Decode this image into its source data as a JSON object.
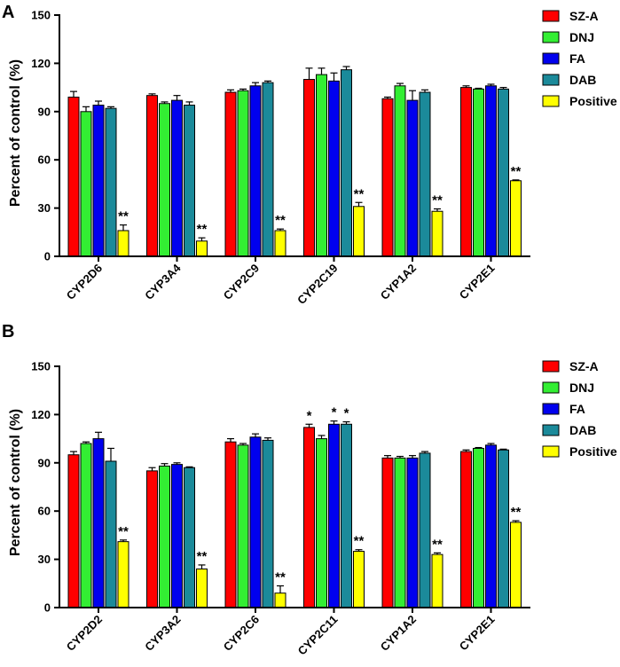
{
  "colors": {
    "SZ-A": "#ff0000",
    "DNJ": "#33ee33",
    "FA": "#0000ee",
    "DAB": "#1b8a9a",
    "Positive": "#ffff00"
  },
  "chart_data": [
    {
      "type": "bar",
      "panel": "A",
      "ylabel": "Percent of control (%)",
      "ylim": [
        0,
        150
      ],
      "yticks": [
        0,
        30,
        60,
        90,
        120,
        150
      ],
      "categories": [
        "CYP2D6",
        "CYP3A4",
        "CYP2C9",
        "CYP2C19",
        "CYP1A2",
        "CYP2E1"
      ],
      "legend": [
        "SZ-A",
        "DNJ",
        "FA",
        "DAB",
        "Positive"
      ],
      "series": [
        {
          "name": "SZ-A",
          "values": [
            99,
            100,
            102,
            110,
            98,
            105
          ],
          "errors": [
            3.5,
            1,
            1.5,
            7,
            1,
            1
          ]
        },
        {
          "name": "DNJ",
          "values": [
            90,
            95,
            103,
            113,
            106,
            104
          ],
          "errors": [
            3,
            1,
            1,
            4,
            1.5,
            0.5
          ]
        },
        {
          "name": "FA",
          "values": [
            94,
            97,
            106,
            109,
            97,
            106
          ],
          "errors": [
            2.5,
            3,
            2,
            5,
            6,
            1
          ]
        },
        {
          "name": "DAB",
          "values": [
            92,
            94,
            108,
            116,
            102,
            104
          ],
          "errors": [
            1,
            2,
            1,
            2,
            1.5,
            1
          ]
        },
        {
          "name": "Positive",
          "values": [
            16,
            9.5,
            16,
            31,
            28,
            47
          ],
          "errors": [
            3.5,
            2,
            1,
            2.5,
            1.5,
            0.5
          ]
        }
      ],
      "significance": [
        {
          "category": "CYP2D6",
          "series": "Positive",
          "label": "**"
        },
        {
          "category": "CYP3A4",
          "series": "Positive",
          "label": "**"
        },
        {
          "category": "CYP2C9",
          "series": "Positive",
          "label": "**"
        },
        {
          "category": "CYP2C19",
          "series": "Positive",
          "label": "**"
        },
        {
          "category": "CYP1A2",
          "series": "Positive",
          "label": "**"
        },
        {
          "category": "CYP2E1",
          "series": "Positive",
          "label": "**"
        }
      ]
    },
    {
      "type": "bar",
      "panel": "B",
      "ylabel": "Percent of control (%)",
      "ylim": [
        0,
        150
      ],
      "yticks": [
        0,
        30,
        60,
        90,
        120,
        150
      ],
      "categories": [
        "CYP2D2",
        "CYP3A2",
        "CYP2C6",
        "CYP2C11",
        "CYP1A2",
        "CYP2E1"
      ],
      "legend": [
        "SZ-A",
        "DNJ",
        "FA",
        "DAB",
        "Positive"
      ],
      "series": [
        {
          "name": "SZ-A",
          "values": [
            95,
            85,
            103,
            112,
            93,
            97
          ],
          "errors": [
            2,
            2,
            2,
            2,
            1.5,
            1
          ]
        },
        {
          "name": "DNJ",
          "values": [
            102,
            88,
            101,
            105,
            93,
            99
          ],
          "errors": [
            1,
            1.5,
            1,
            2,
            1,
            0.5
          ]
        },
        {
          "name": "FA",
          "values": [
            105,
            89,
            106,
            114,
            93,
            101
          ],
          "errors": [
            4,
            1,
            2,
            2,
            1.5,
            1
          ]
        },
        {
          "name": "DAB",
          "values": [
            91,
            87,
            104,
            114,
            96,
            98
          ],
          "errors": [
            8,
            0.5,
            1.5,
            1.5,
            1,
            0.5
          ]
        },
        {
          "name": "Positive",
          "values": [
            41,
            24,
            9,
            35,
            33,
            53
          ],
          "errors": [
            1,
            2.5,
            4.5,
            1,
            1,
            1
          ]
        }
      ],
      "significance": [
        {
          "category": "CYP2D2",
          "series": "Positive",
          "label": "**"
        },
        {
          "category": "CYP3A2",
          "series": "Positive",
          "label": "**"
        },
        {
          "category": "CYP2C6",
          "series": "Positive",
          "label": "**"
        },
        {
          "category": "CYP2C11",
          "series": "SZ-A",
          "label": "*"
        },
        {
          "category": "CYP2C11",
          "series": "FA",
          "label": "*"
        },
        {
          "category": "CYP2C11",
          "series": "DAB",
          "label": "*"
        },
        {
          "category": "CYP2C11",
          "series": "Positive",
          "label": "**"
        },
        {
          "category": "CYP1A2",
          "series": "Positive",
          "label": "**"
        },
        {
          "category": "CYP2E1",
          "series": "Positive",
          "label": "**"
        }
      ]
    }
  ]
}
